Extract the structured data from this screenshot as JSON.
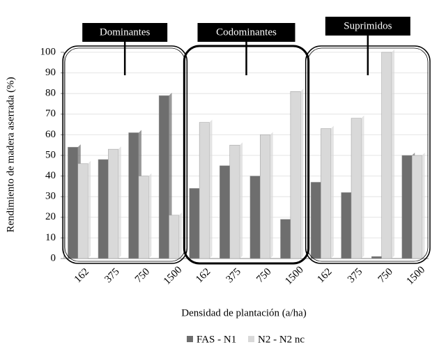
{
  "chart_data": {
    "type": "bar",
    "y_label": "Rendimiento de madera aserrada (%)",
    "x_label": "Densidad de plantación (a/ha)",
    "groups": [
      "Dominantes",
      "Codominantes",
      "Suprimidos"
    ],
    "categories": [
      "162",
      "375",
      "750",
      "1500",
      "162",
      "375",
      "750",
      "1500",
      "162",
      "375",
      "750",
      "1500"
    ],
    "series": [
      {
        "name": "FAS - N1",
        "color": "#6e6e6e",
        "values": [
          54,
          48,
          61,
          79,
          34,
          45,
          40,
          19,
          37,
          32,
          1,
          50
        ]
      },
      {
        "name": "N2 - N2 nc",
        "color": "#d9d9d9",
        "values": [
          46,
          53,
          40,
          21,
          66,
          55,
          60,
          81,
          63,
          68,
          100,
          50
        ]
      }
    ],
    "ylim": [
      0,
      100
    ],
    "yticks": [
      0,
      10,
      20,
      30,
      40,
      50,
      60,
      70,
      80,
      90,
      100
    ],
    "grid": true
  }
}
